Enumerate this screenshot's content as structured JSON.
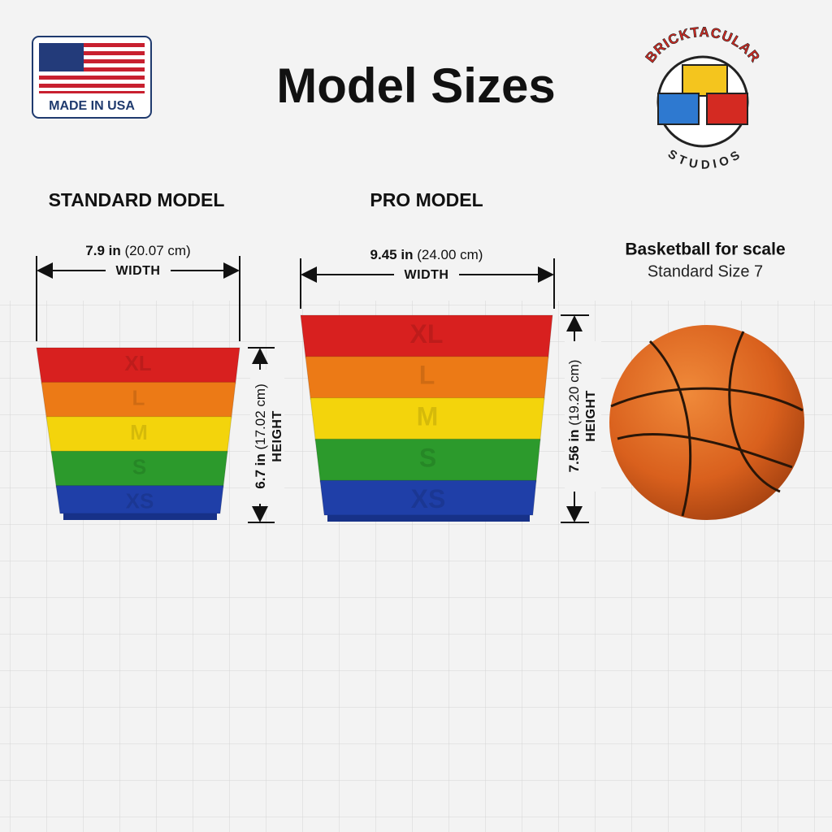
{
  "badge": {
    "text": "MADE IN USA"
  },
  "title": "Model Sizes",
  "logo": {
    "top": "BRICKTACULAR",
    "bottom": "STUDIOS"
  },
  "models": [
    {
      "name": "STANDARD MODEL",
      "width": {
        "inches": "7.9 in",
        "cm": "(20.07 cm)",
        "label": "WIDTH"
      },
      "height": {
        "inches": "6.7 in",
        "cm": "(17.02 cm)",
        "label": "HEIGHT"
      },
      "layers": [
        "XL",
        "L",
        "M",
        "S",
        "XS"
      ]
    },
    {
      "name": "PRO MODEL",
      "width": {
        "inches": "9.45 in",
        "cm": "(24.00 cm)",
        "label": "WIDTH"
      },
      "height": {
        "inches": "7.56 in",
        "cm": "(19.20 cm)",
        "label": "HEIGHT"
      },
      "layers": [
        "XL",
        "L",
        "M",
        "S",
        "XS"
      ]
    }
  ],
  "scale_note": {
    "title": "Basketball for scale",
    "subtitle": "Standard Size 7"
  }
}
